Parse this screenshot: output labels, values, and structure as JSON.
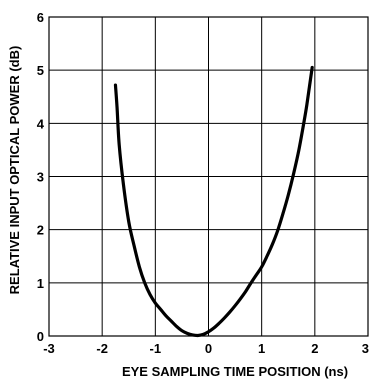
{
  "chart_data": {
    "type": "line",
    "title": "",
    "xlabel": "EYE SAMPLING TIME POSITION (ns)",
    "ylabel": "RELATIVE INPUT OPTICAL POWER (dB)",
    "xlim": [
      -3,
      3
    ],
    "ylim": [
      0,
      6
    ],
    "xticks": [
      "-3",
      "-2",
      "-1",
      "0",
      "1",
      "2",
      "3"
    ],
    "yticks": [
      "0",
      "1",
      "2",
      "3",
      "4",
      "5",
      "6"
    ],
    "grid": true,
    "legend": "none",
    "series": [
      {
        "color": "#000000",
        "x": [
          -1.75,
          -1.72,
          -1.68,
          -1.6,
          -1.5,
          -1.4,
          -1.3,
          -1.2,
          -1.1,
          -1.0,
          -0.9,
          -0.8,
          -0.7,
          -0.6,
          -0.5,
          -0.4,
          -0.3,
          -0.2,
          -0.1,
          0.0,
          0.1,
          0.2,
          0.3,
          0.4,
          0.5,
          0.6,
          0.7,
          0.8,
          0.9,
          1.0,
          1.1,
          1.2,
          1.3,
          1.4,
          1.5,
          1.6,
          1.7,
          1.8,
          1.85,
          1.9,
          1.95
        ],
        "y": [
          4.72,
          4.3,
          3.6,
          2.85,
          2.15,
          1.7,
          1.3,
          1.0,
          0.78,
          0.62,
          0.5,
          0.38,
          0.28,
          0.18,
          0.1,
          0.05,
          0.02,
          0.01,
          0.03,
          0.08,
          0.15,
          0.24,
          0.34,
          0.45,
          0.57,
          0.7,
          0.84,
          1.0,
          1.15,
          1.3,
          1.5,
          1.72,
          1.98,
          2.3,
          2.65,
          3.05,
          3.5,
          4.05,
          4.35,
          4.7,
          5.05
        ]
      }
    ]
  }
}
